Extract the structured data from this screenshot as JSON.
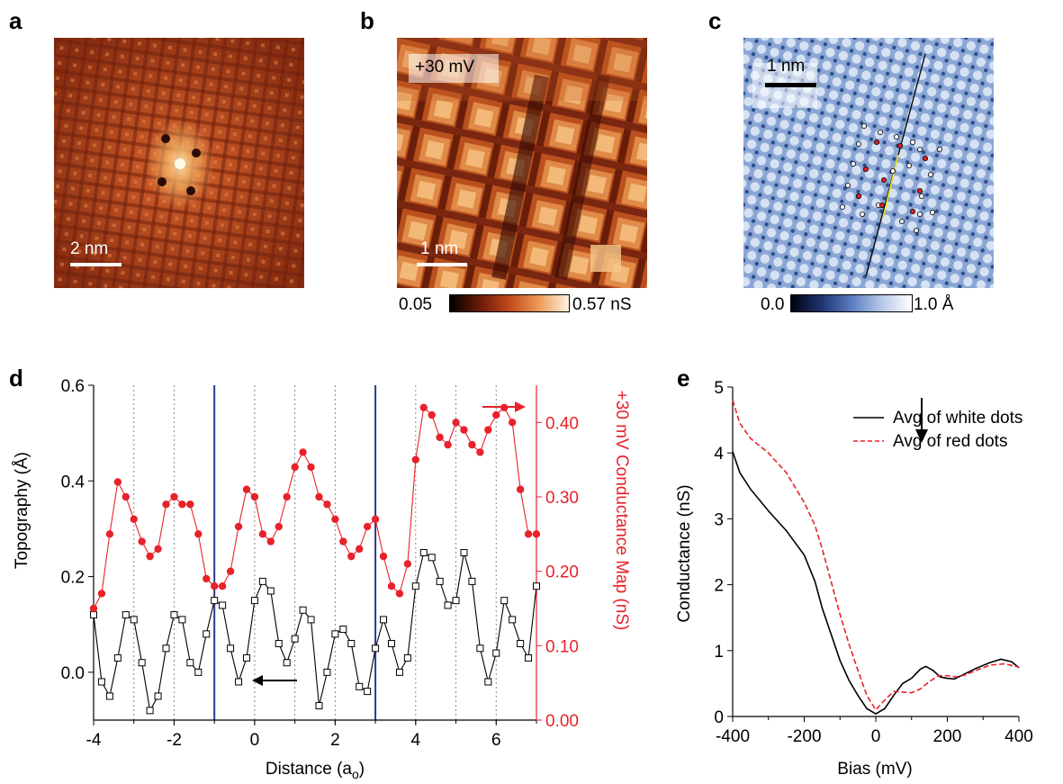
{
  "panels": {
    "a": {
      "label": "a",
      "scalebar": "2 nm"
    },
    "b": {
      "label": "b",
      "bias_tag": "+30 mV",
      "scalebar": "1 nm",
      "cbar_min": "0.05",
      "cbar_max": "0.57 nS"
    },
    "c": {
      "label": "c",
      "scalebar": "1 nm",
      "cbar_min": "0.0",
      "cbar_max": "1.0 Å"
    },
    "d": {
      "label": "d"
    },
    "e": {
      "label": "e"
    }
  },
  "colors": {
    "topo": "#000000",
    "conductance": "#e8222a",
    "marker_line": "#2a3a8c",
    "grid": "#888888"
  },
  "chart_data": [
    {
      "id": "d",
      "type": "line",
      "xlabel": "Distance (a",
      "xlabel_sub": "o",
      "xlabel_end": ")",
      "ylabel_left": "Topography (Å)",
      "ylabel_right": "+30 mV Conductance Map (nS)",
      "xlim": [
        -4,
        7
      ],
      "ylim_left": [
        -0.1,
        0.6
      ],
      "ylim_right": [
        0.0,
        0.45
      ],
      "x_ticks": [
        "-4",
        "-2",
        "0",
        "2",
        "4",
        "6"
      ],
      "y_ticks_left": [
        "0.0",
        "0.2",
        "0.4",
        "0.6"
      ],
      "y_ticks_right": [
        "0.00",
        "0.10",
        "0.20",
        "0.30",
        "0.40"
      ],
      "vlines": [
        -1,
        3
      ],
      "grid_x": [
        -3,
        -2,
        -1,
        0,
        1,
        2,
        3,
        4,
        5,
        6
      ],
      "series": [
        {
          "axis": "left",
          "marker": "open-square",
          "points": [
            [
              -4.0,
              0.12
            ],
            [
              -3.8,
              -0.02
            ],
            [
              -3.6,
              -0.05
            ],
            [
              -3.4,
              0.03
            ],
            [
              -3.2,
              0.12
            ],
            [
              -3.0,
              0.11
            ],
            [
              -2.8,
              0.02
            ],
            [
              -2.6,
              -0.08
            ],
            [
              -2.4,
              -0.05
            ],
            [
              -2.2,
              0.05
            ],
            [
              -2.0,
              0.12
            ],
            [
              -1.8,
              0.11
            ],
            [
              -1.6,
              0.02
            ],
            [
              -1.4,
              0.0
            ],
            [
              -1.2,
              0.08
            ],
            [
              -1.0,
              0.15
            ],
            [
              -0.8,
              0.14
            ],
            [
              -0.6,
              0.05
            ],
            [
              -0.4,
              -0.02
            ],
            [
              -0.2,
              0.03
            ],
            [
              0.0,
              0.15
            ],
            [
              0.2,
              0.19
            ],
            [
              0.4,
              0.17
            ],
            [
              0.6,
              0.06
            ],
            [
              0.8,
              0.02
            ],
            [
              1.0,
              0.07
            ],
            [
              1.2,
              0.13
            ],
            [
              1.4,
              0.11
            ],
            [
              1.6,
              -0.07
            ],
            [
              1.8,
              0.0
            ],
            [
              2.0,
              0.08
            ],
            [
              2.2,
              0.09
            ],
            [
              2.4,
              0.06
            ],
            [
              2.6,
              -0.03
            ],
            [
              2.8,
              -0.04
            ],
            [
              3.0,
              0.05
            ],
            [
              3.2,
              0.11
            ],
            [
              3.4,
              0.06
            ],
            [
              3.6,
              0.0
            ],
            [
              3.8,
              0.03
            ],
            [
              4.0,
              0.18
            ],
            [
              4.2,
              0.25
            ],
            [
              4.4,
              0.24
            ],
            [
              4.6,
              0.19
            ],
            [
              4.8,
              0.14
            ],
            [
              5.0,
              0.15
            ],
            [
              5.2,
              0.25
            ],
            [
              5.4,
              0.19
            ],
            [
              5.6,
              0.05
            ],
            [
              5.8,
              -0.02
            ],
            [
              6.0,
              0.04
            ],
            [
              6.2,
              0.15
            ],
            [
              6.4,
              0.11
            ],
            [
              6.6,
              0.06
            ],
            [
              6.8,
              0.03
            ],
            [
              7.0,
              0.18
            ]
          ]
        },
        {
          "axis": "right",
          "marker": "filled-circle",
          "points": [
            [
              -4.0,
              0.15
            ],
            [
              -3.8,
              0.17
            ],
            [
              -3.6,
              0.25
            ],
            [
              -3.4,
              0.32
            ],
            [
              -3.2,
              0.3
            ],
            [
              -3.0,
              0.27
            ],
            [
              -2.8,
              0.24
            ],
            [
              -2.6,
              0.22
            ],
            [
              -2.4,
              0.23
            ],
            [
              -2.2,
              0.29
            ],
            [
              -2.0,
              0.3
            ],
            [
              -1.8,
              0.29
            ],
            [
              -1.6,
              0.29
            ],
            [
              -1.4,
              0.25
            ],
            [
              -1.2,
              0.19
            ],
            [
              -1.0,
              0.18
            ],
            [
              -0.8,
              0.18
            ],
            [
              -0.6,
              0.2
            ],
            [
              -0.4,
              0.26
            ],
            [
              -0.2,
              0.31
            ],
            [
              0.0,
              0.3
            ],
            [
              0.2,
              0.25
            ],
            [
              0.4,
              0.24
            ],
            [
              0.6,
              0.26
            ],
            [
              0.8,
              0.3
            ],
            [
              1.0,
              0.34
            ],
            [
              1.2,
              0.36
            ],
            [
              1.4,
              0.34
            ],
            [
              1.6,
              0.3
            ],
            [
              1.8,
              0.29
            ],
            [
              2.0,
              0.27
            ],
            [
              2.2,
              0.24
            ],
            [
              2.4,
              0.22
            ],
            [
              2.6,
              0.23
            ],
            [
              2.8,
              0.26
            ],
            [
              3.0,
              0.27
            ],
            [
              3.2,
              0.22
            ],
            [
              3.4,
              0.18
            ],
            [
              3.6,
              0.17
            ],
            [
              3.8,
              0.21
            ],
            [
              4.0,
              0.35
            ],
            [
              4.2,
              0.42
            ],
            [
              4.4,
              0.41
            ],
            [
              4.6,
              0.38
            ],
            [
              4.8,
              0.37
            ],
            [
              5.0,
              0.4
            ],
            [
              5.2,
              0.39
            ],
            [
              5.4,
              0.37
            ],
            [
              5.6,
              0.36
            ],
            [
              5.8,
              0.39
            ],
            [
              6.0,
              0.41
            ],
            [
              6.2,
              0.42
            ],
            [
              6.4,
              0.4
            ],
            [
              6.6,
              0.31
            ],
            [
              6.8,
              0.25
            ],
            [
              7.0,
              0.25
            ]
          ]
        }
      ]
    },
    {
      "id": "e",
      "type": "line",
      "xlabel": "Bias (mV)",
      "ylabel": "Conductance (nS)",
      "xlim": [
        -400,
        400
      ],
      "ylim": [
        0,
        5
      ],
      "x_ticks": [
        "-400",
        "-200",
        "0",
        "200",
        "400"
      ],
      "y_ticks": [
        "0",
        "1",
        "2",
        "3",
        "4",
        "5"
      ],
      "legend_position": "top-right",
      "series": [
        {
          "name": "Avg of white dots",
          "style": "solid",
          "points": [
            [
              -400,
              4.02
            ],
            [
              -380,
              3.7
            ],
            [
              -350,
              3.45
            ],
            [
              -300,
              3.12
            ],
            [
              -250,
              2.82
            ],
            [
              -200,
              2.45
            ],
            [
              -170,
              2.05
            ],
            [
              -150,
              1.65
            ],
            [
              -125,
              1.25
            ],
            [
              -100,
              0.85
            ],
            [
              -75,
              0.55
            ],
            [
              -50,
              0.32
            ],
            [
              -25,
              0.12
            ],
            [
              0,
              0.04
            ],
            [
              25,
              0.12
            ],
            [
              50,
              0.32
            ],
            [
              75,
              0.5
            ],
            [
              100,
              0.58
            ],
            [
              125,
              0.72
            ],
            [
              140,
              0.76
            ],
            [
              160,
              0.7
            ],
            [
              180,
              0.6
            ],
            [
              200,
              0.58
            ],
            [
              220,
              0.57
            ],
            [
              250,
              0.65
            ],
            [
              280,
              0.73
            ],
            [
              320,
              0.82
            ],
            [
              350,
              0.87
            ],
            [
              380,
              0.83
            ],
            [
              400,
              0.74
            ]
          ]
        },
        {
          "name": "Avg of red dots",
          "style": "dashed",
          "points": [
            [
              -400,
              4.8
            ],
            [
              -380,
              4.45
            ],
            [
              -350,
              4.22
            ],
            [
              -300,
              4.0
            ],
            [
              -250,
              3.7
            ],
            [
              -200,
              3.25
            ],
            [
              -170,
              2.9
            ],
            [
              -150,
              2.55
            ],
            [
              -125,
              2.05
            ],
            [
              -100,
              1.55
            ],
            [
              -75,
              1.1
            ],
            [
              -50,
              0.7
            ],
            [
              -25,
              0.32
            ],
            [
              0,
              0.1
            ],
            [
              25,
              0.25
            ],
            [
              50,
              0.38
            ],
            [
              75,
              0.37
            ],
            [
              100,
              0.36
            ],
            [
              125,
              0.42
            ],
            [
              150,
              0.53
            ],
            [
              175,
              0.62
            ],
            [
              200,
              0.62
            ],
            [
              225,
              0.6
            ],
            [
              250,
              0.63
            ],
            [
              280,
              0.7
            ],
            [
              320,
              0.78
            ],
            [
              360,
              0.8
            ],
            [
              400,
              0.75
            ]
          ]
        }
      ]
    }
  ]
}
